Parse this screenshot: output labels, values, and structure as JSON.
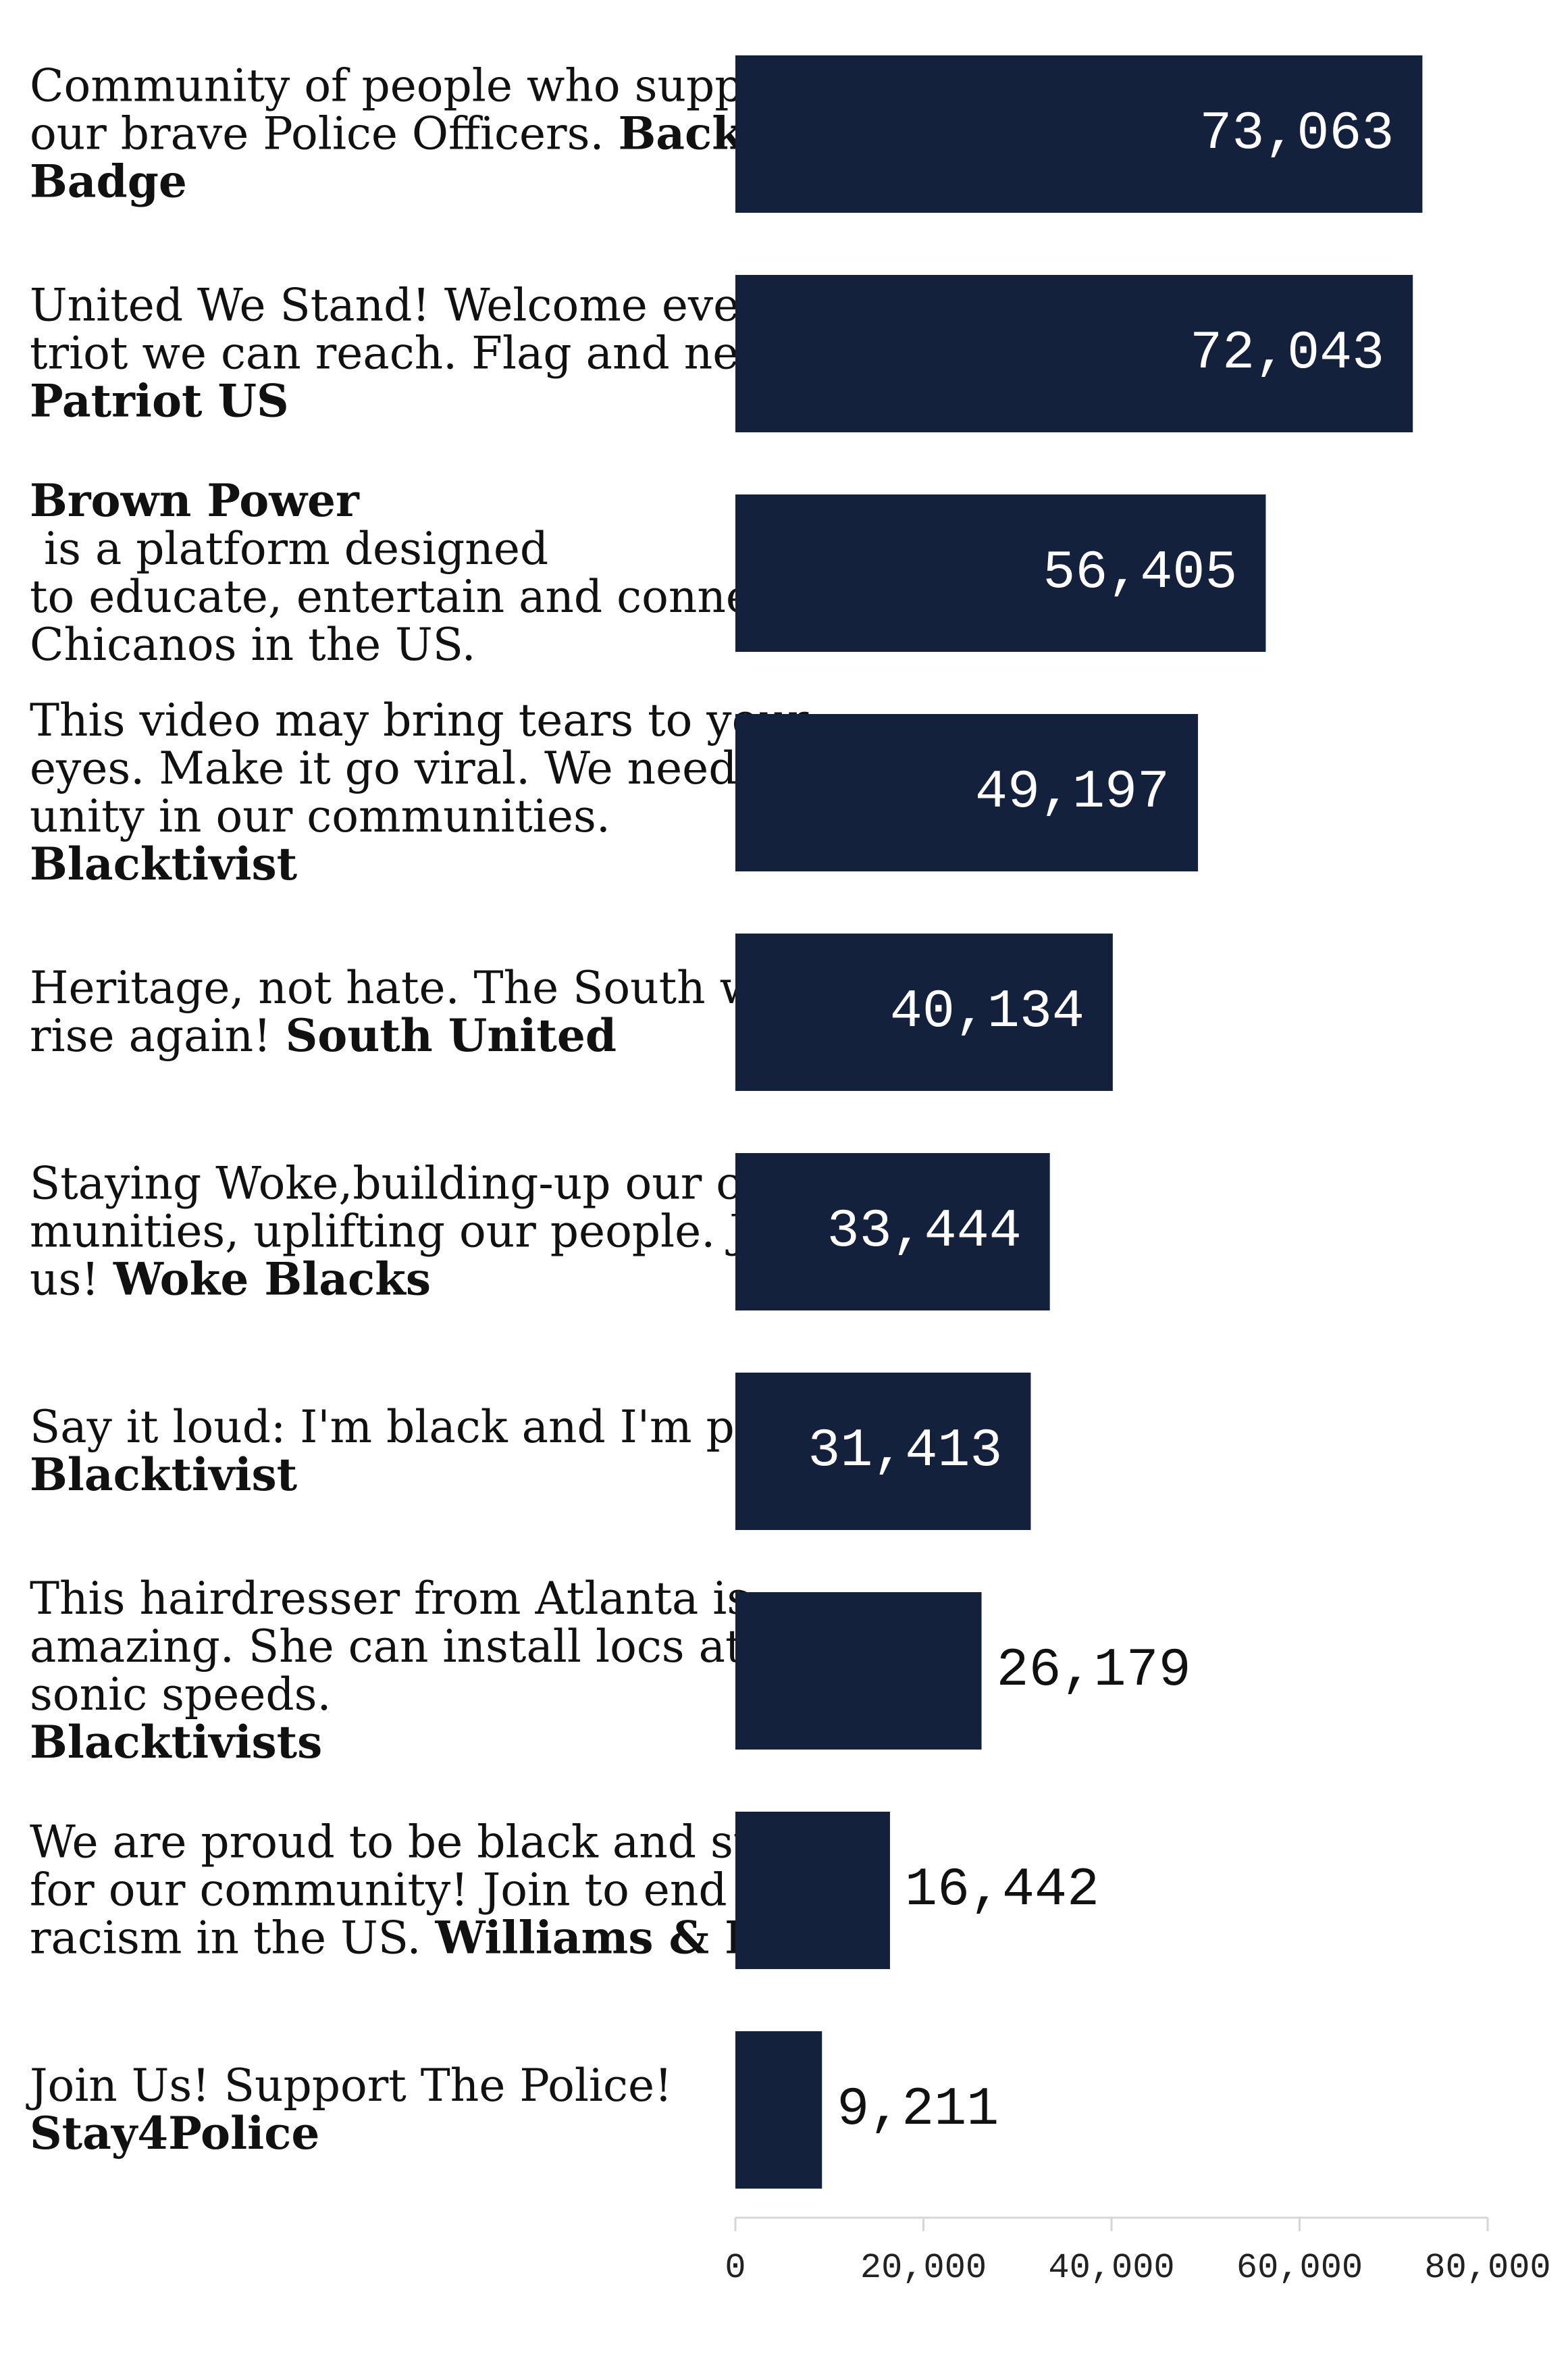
{
  "colors": {
    "bar": "#14213d",
    "value_inside": "#ffffff",
    "value_outside": "#111111",
    "axis": "#d6d6d6"
  },
  "chart_data": {
    "type": "bar",
    "orientation": "horizontal",
    "categories": [
      [
        {
          "t": "Community of people who support"
        },
        {
          "t": "our brave Police Officers. "
        },
        {
          "t": "Back The",
          "b": true
        },
        {
          "t": "Badge",
          "b": true
        }
      ],
      [
        {
          "t": "United We Stand! Welcome every pa-"
        },
        {
          "t": "triot we can reach. Flag and news!"
        },
        {
          "t": "Patriot US",
          "b": true
        }
      ],
      [
        {
          "t": "Brown Power",
          "b": true
        },
        {
          "t": " is a platform designed"
        },
        {
          "t": "to educate, entertain and connect"
        },
        {
          "t": "Chicanos in the US."
        }
      ],
      [
        {
          "t": "This video may bring tears to your"
        },
        {
          "t": "eyes. Make it go viral. We need this"
        },
        {
          "t": "unity in our communities."
        },
        {
          "t": "Blacktivist",
          "b": true
        }
      ],
      [
        {
          "t": "Heritage, not hate. The South will"
        },
        {
          "t": "rise again! "
        },
        {
          "t": "South United",
          "b": true
        }
      ],
      [
        {
          "t": "Staying Woke,building-up our com-"
        },
        {
          "t": "munities, uplifting our people. Join"
        },
        {
          "t": "us! "
        },
        {
          "t": "Woke Blacks",
          "b": true
        }
      ],
      [
        {
          "t": "Say it loud: I'm black and I'm proud!"
        },
        {
          "t": "Blacktivist",
          "b": true
        }
      ],
      [
        {
          "t": "This hairdresser from Atlanta is"
        },
        {
          "t": "amazing. She can install locs at super-"
        },
        {
          "t": "sonic speeds."
        },
        {
          "t": "Blacktivists",
          "b": true
        }
      ],
      [
        {
          "t": "We are proud to be black and stand"
        },
        {
          "t": "for our community! Join to end the"
        },
        {
          "t": "racism in the US. "
        },
        {
          "t": "Williams & Kalvin",
          "b": true
        }
      ],
      [
        {
          "t": "Join Us! Support The Police!"
        },
        {
          "t": "Stay4Police",
          "b": true
        }
      ]
    ],
    "values": [
      73063,
      72043,
      56405,
      49197,
      40134,
      33444,
      31413,
      26179,
      16442,
      9211
    ],
    "value_labels": [
      "73,063",
      "72,043",
      "56,405",
      "49,197",
      "40,134",
      "33,444",
      "31,413",
      "26,179",
      "16,442",
      "9,211"
    ],
    "xlim": [
      0,
      80000
    ],
    "ticks": [
      0,
      20000,
      40000,
      60000,
      80000
    ],
    "tick_labels": [
      "0",
      "20,000",
      "40,000",
      "60,000",
      "80,000"
    ],
    "grid": false,
    "legend": "none"
  }
}
